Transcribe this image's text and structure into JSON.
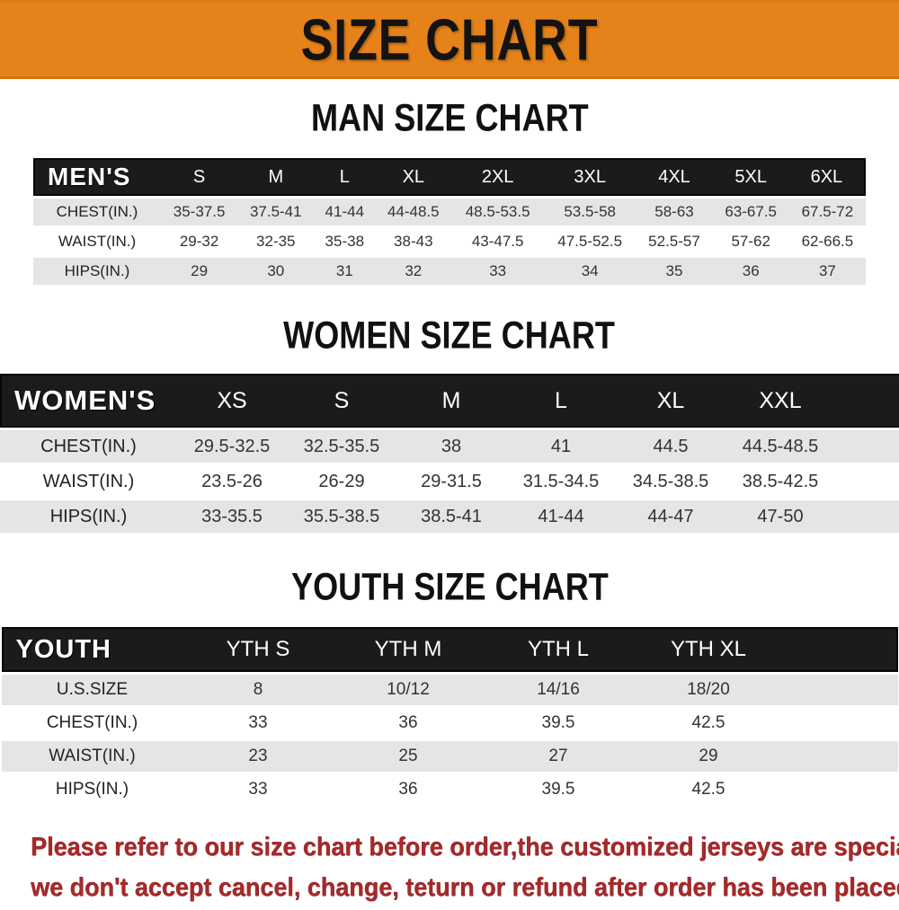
{
  "banner": {
    "title": "SIZE CHART",
    "bg_color": "#e5821a",
    "text_color": "#131313"
  },
  "sections": [
    {
      "id": "man",
      "heading": "MAN SIZE CHART",
      "table": {
        "label": "MEN'S",
        "sizes": [
          "S",
          "M",
          "L",
          "XL",
          "2XL",
          "3XL",
          "4XL",
          "5XL",
          "6XL"
        ],
        "rows": [
          {
            "label": "CHEST(IN.)",
            "values": [
              "35-37.5",
              "37.5-41",
              "41-44",
              "44-48.5",
              "48.5-53.5",
              "53.5-58",
              "58-63",
              "63-67.5",
              "67.5-72"
            ]
          },
          {
            "label": "WAIST(IN.)",
            "values": [
              "29-32",
              "32-35",
              "35-38",
              "38-43",
              "43-47.5",
              "47.5-52.5",
              "52.5-57",
              "57-62",
              "62-66.5"
            ]
          },
          {
            "label": "HIPS(IN.)",
            "values": [
              "29",
              "30",
              "31",
              "32",
              "33",
              "34",
              "35",
              "36",
              "37"
            ]
          }
        ]
      }
    },
    {
      "id": "women",
      "heading": "WOMEN SIZE CHART",
      "table": {
        "label": "WOMEN'S",
        "sizes": [
          "XS",
          "S",
          "M",
          "L",
          "XL",
          "XXL"
        ],
        "rows": [
          {
            "label": "CHEST(IN.)",
            "values": [
              "29.5-32.5",
              "32.5-35.5",
              "38",
              "41",
              "44.5",
              "44.5-48.5"
            ]
          },
          {
            "label": "WAIST(IN.)",
            "values": [
              "23.5-26",
              "26-29",
              "29-31.5",
              "31.5-34.5",
              "34.5-38.5",
              "38.5-42.5"
            ]
          },
          {
            "label": "HIPS(IN.)",
            "values": [
              "33-35.5",
              "35.5-38.5",
              "38.5-41",
              "41-44",
              "44-47",
              "47-50"
            ]
          }
        ]
      }
    },
    {
      "id": "youth",
      "heading": "YOUTH SIZE CHART",
      "table": {
        "label": "YOUTH",
        "sizes": [
          "YTH S",
          "YTH M",
          "YTH L",
          "YTH XL"
        ],
        "rows": [
          {
            "label": "U.S.SIZE",
            "values": [
              "8",
              "10/12",
              "14/16",
              "18/20"
            ]
          },
          {
            "label": "CHEST(IN.)",
            "values": [
              "33",
              "36",
              "39.5",
              "42.5"
            ]
          },
          {
            "label": "WAIST(IN.)",
            "values": [
              "23",
              "25",
              "27",
              "29"
            ]
          },
          {
            "label": "HIPS(IN.)",
            "values": [
              "33",
              "36",
              "39.5",
              "42.5"
            ]
          }
        ]
      }
    }
  ],
  "footer": {
    "line1": "Please refer to our size chart before order,the customized jerseys are special products,",
    "line2": "we don't accept cancel, change, teturn or refund after order has been placed!",
    "text_color": "#a62a2b"
  }
}
